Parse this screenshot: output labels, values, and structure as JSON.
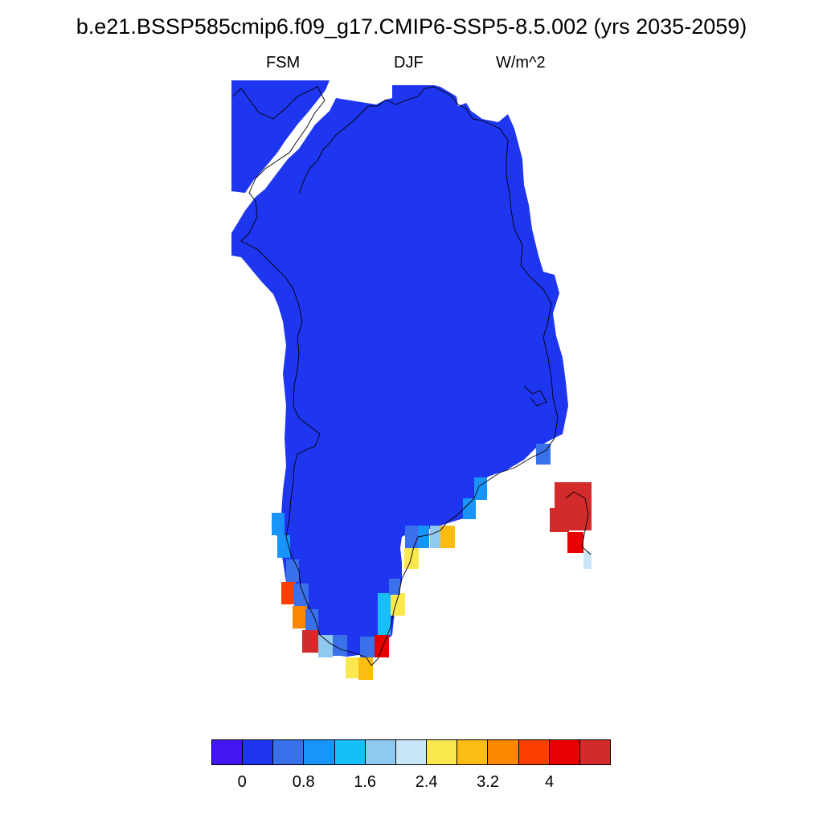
{
  "title": "b.e21.BSSP585cmip6.f09_g17.CMIP6-SSP5-8.5.002 (yrs 2035-2059)",
  "subtitle": {
    "left": "FSM",
    "center": "DJF",
    "right": "W/m^2"
  },
  "colorbar": {
    "colors": [
      "#4116f2",
      "#1f36f0",
      "#3a71ea",
      "#1894fb",
      "#16bff7",
      "#90c9ef",
      "#c9e6f8",
      "#fbe84f",
      "#fcbc14",
      "#fc8700",
      "#fd4000",
      "#e80000",
      "#d32a2c"
    ],
    "tick_labels": [
      "0",
      "0.8",
      "1.6",
      "2.4",
      "3.2",
      "4"
    ]
  },
  "region": {
    "fill_color": "#1f36f0"
  }
}
